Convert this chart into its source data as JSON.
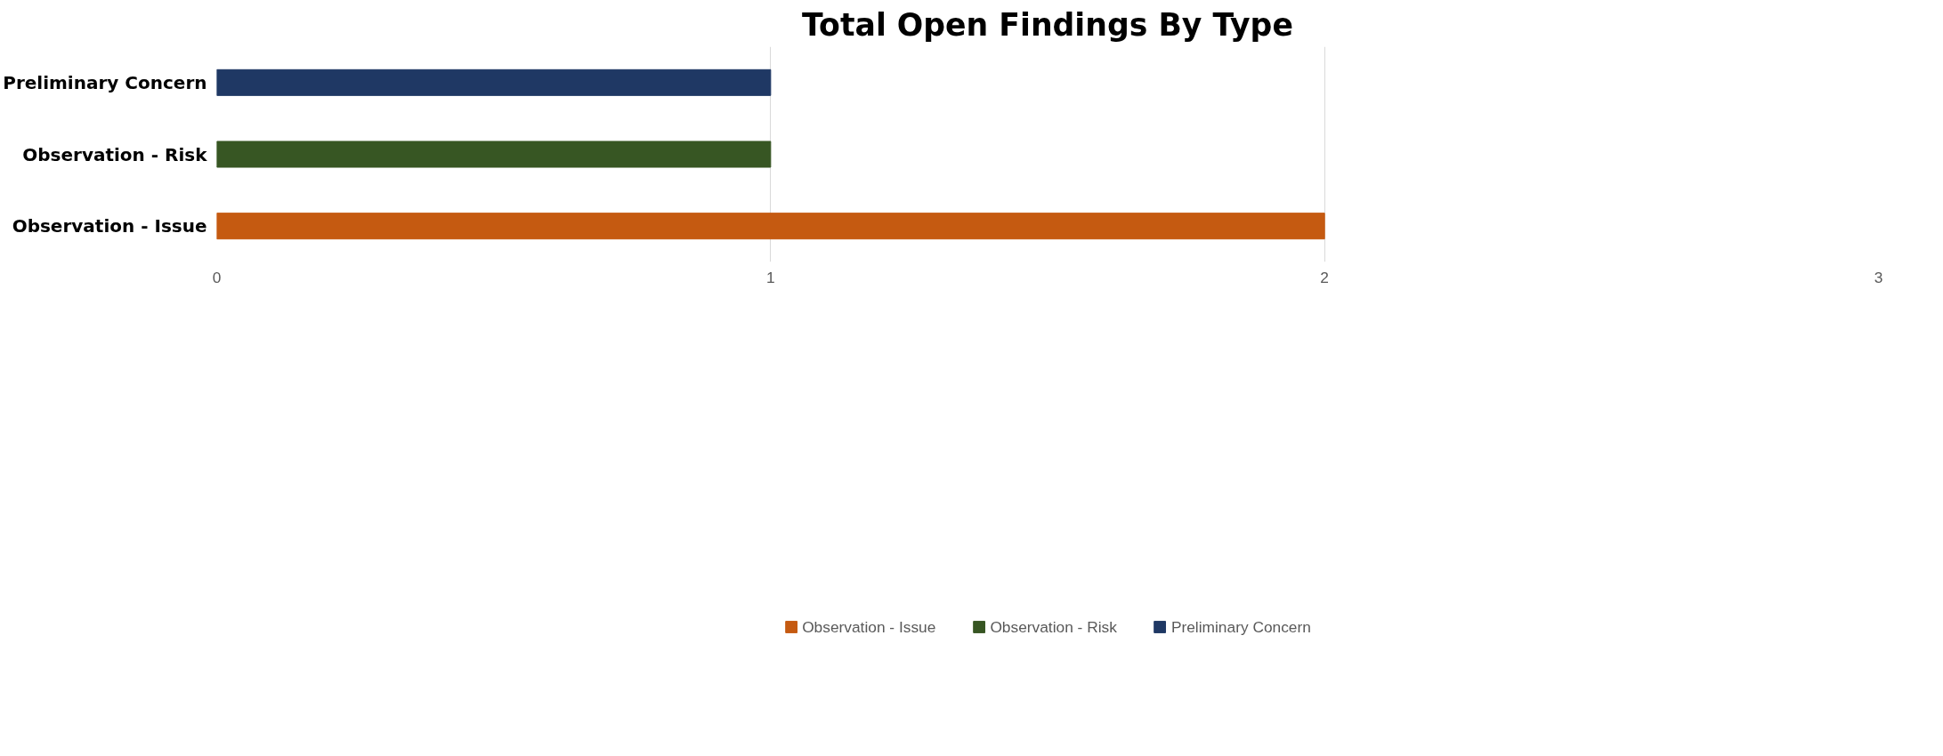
{
  "chart_data": {
    "type": "bar",
    "orientation": "horizontal",
    "title": "Total Open Findings By Type",
    "categories": [
      "Preliminary Concern",
      "Observation - Risk",
      "Observation - Issue"
    ],
    "series": [
      {
        "name": "Observation - Issue",
        "color": "#c55a11",
        "values": [
          null,
          null,
          2
        ]
      },
      {
        "name": "Observation - Risk",
        "color": "#375623",
        "values": [
          null,
          1,
          null
        ]
      },
      {
        "name": "Preliminary Concern",
        "color": "#1f3864",
        "values": [
          1,
          null,
          null
        ]
      }
    ],
    "xlim": [
      0,
      3
    ],
    "xticks": [
      0,
      1,
      2,
      3
    ],
    "grid": "x",
    "legend": "bottom"
  }
}
